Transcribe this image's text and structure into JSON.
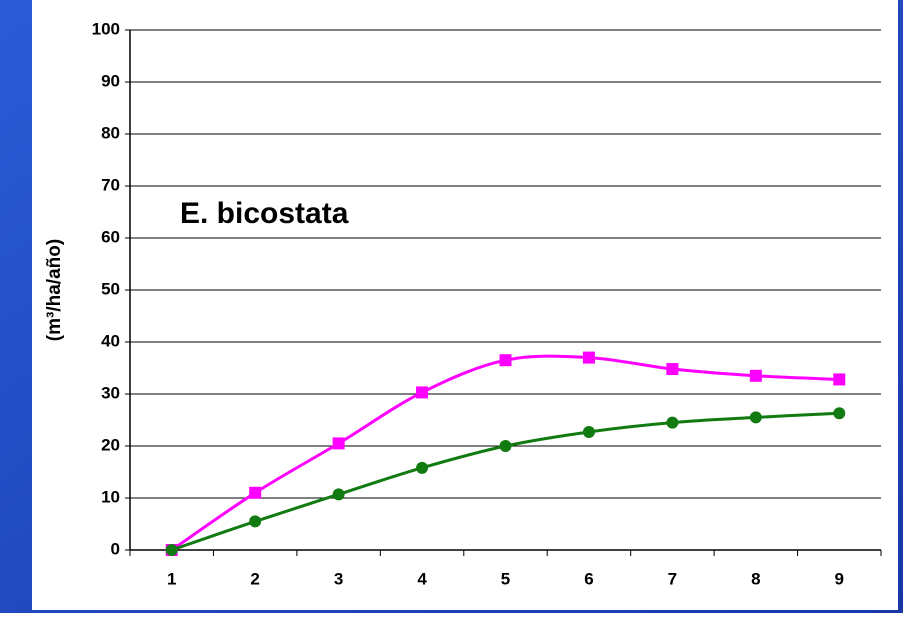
{
  "chart_data": {
    "type": "line",
    "y_label": "(m³/ha/año)",
    "annotation": "E. bicostata",
    "categories": [
      "1",
      "2",
      "3",
      "4",
      "5",
      "6",
      "7",
      "8",
      "9"
    ],
    "series": [
      {
        "color": "#ff00ff",
        "marker": "square",
        "values": [
          0,
          11,
          20.5,
          30.3,
          36.5,
          37,
          34.8,
          33.5,
          32.8
        ]
      },
      {
        "color": "#117a11",
        "marker": "circle",
        "values": [
          0,
          5.5,
          10.7,
          15.8,
          20,
          22.7,
          24.5,
          25.5,
          26.3
        ]
      }
    ],
    "ylim": [
      0,
      100
    ],
    "yticks": [
      0,
      10,
      20,
      30,
      40,
      50,
      60,
      70,
      80,
      90,
      100
    ],
    "grid": true,
    "smooth": true
  }
}
